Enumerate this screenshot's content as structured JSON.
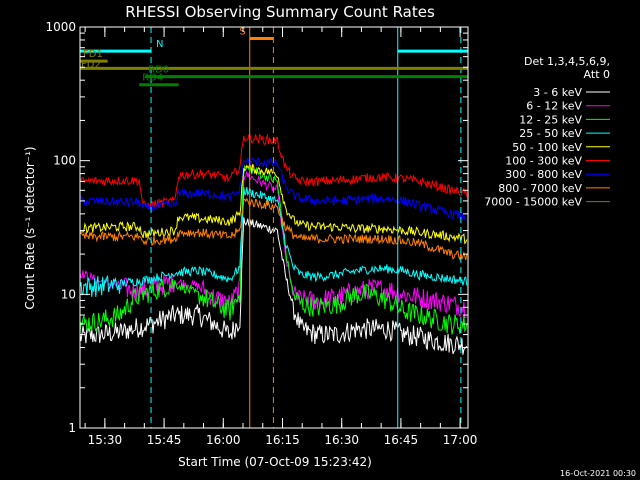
{
  "chart_data": {
    "type": "line",
    "title": "RHESSI Observing Summary Count Rates",
    "xlabel": "Start Time (07-Oct-09 15:23:42)",
    "ylabel": "Count Rate (s⁻¹ detector⁻¹)",
    "y_scale": "log",
    "ylim": [
      1,
      1000
    ],
    "x_unit": "minutes after 15:23:42",
    "xlim": [
      0,
      98.3
    ],
    "x_ticks": [
      {
        "label": "15:30",
        "value": 6.3
      },
      {
        "label": "15:45",
        "value": 21.3
      },
      {
        "label": "16:00",
        "value": 36.3
      },
      {
        "label": "16:15",
        "value": 51.3
      },
      {
        "label": "16:30",
        "value": 66.3
      },
      {
        "label": "16:45",
        "value": 81.3
      },
      {
        "label": "17:00",
        "value": 96.3
      }
    ],
    "y_ticks": [
      {
        "label": "1",
        "value": 1
      },
      {
        "label": "10",
        "value": 10
      },
      {
        "label": "100",
        "value": 100
      },
      {
        "label": "1000",
        "value": 1000
      }
    ],
    "legend_header": [
      "Det 1,3,4,5,6,9,",
      "Att 0"
    ],
    "legend_position": "right",
    "series": [
      {
        "name": "3 - 6 keV",
        "color": "#ffffff",
        "x": [
          0,
          10,
          18,
          24,
          30,
          34,
          38,
          40.5,
          41.5,
          50,
          52,
          54,
          56,
          60,
          65,
          70,
          74,
          78,
          82,
          86,
          90,
          94,
          98
        ],
        "y": [
          4.8,
          5.2,
          6.0,
          7.0,
          7.0,
          6.0,
          5.0,
          6.5,
          35,
          30,
          14,
          8,
          5.5,
          5.0,
          5.0,
          5.5,
          5.5,
          5.5,
          5.0,
          4.8,
          4.5,
          4.3,
          4.2
        ]
      },
      {
        "name": "6 - 12 keV",
        "color": "#ff00ff",
        "x": [
          0,
          5,
          10,
          14,
          18,
          24,
          30,
          34,
          38,
          40.5,
          41.5,
          50,
          52,
          54,
          56,
          60,
          65,
          70,
          74,
          78,
          82,
          86,
          90,
          94,
          98
        ],
        "y": [
          14.5,
          12.5,
          11.5,
          10.5,
          11.0,
          12.5,
          11.5,
          9.5,
          8.5,
          11,
          80,
          60,
          20,
          10,
          9.0,
          9.0,
          9.5,
          10.5,
          11,
          11,
          10,
          9.5,
          9.0,
          8.5,
          8.0
        ]
      },
      {
        "name": "12 - 25 keV",
        "color": "#00ff00",
        "x": [
          0,
          5,
          10,
          14,
          18,
          24,
          30,
          34,
          38,
          40.5,
          41.5,
          50,
          52,
          54,
          56,
          60,
          65,
          70,
          74,
          78,
          82,
          86,
          90,
          94,
          98
        ],
        "y": [
          6.0,
          6.3,
          7.0,
          9.5,
          10.5,
          12.0,
          10.0,
          8.5,
          7.5,
          10,
          90,
          70,
          22,
          10,
          8.5,
          8.0,
          8.5,
          10,
          10,
          9.0,
          7.5,
          7.0,
          6.5,
          6.0,
          6.0
        ]
      },
      {
        "name": "25 - 50 keV",
        "color": "#00ffff",
        "x": [
          0,
          5,
          10,
          14,
          18,
          24,
          30,
          34,
          38,
          40.5,
          41.5,
          50,
          52,
          54,
          56,
          60,
          65,
          70,
          74,
          78,
          82,
          86,
          90,
          94,
          98
        ],
        "y": [
          11.5,
          11.5,
          12.0,
          12.5,
          13.0,
          14.5,
          15.0,
          14.0,
          13.0,
          16,
          60,
          50,
          25,
          16,
          14,
          13.5,
          14,
          15,
          15.5,
          15.5,
          15,
          14,
          13.5,
          13,
          12.5
        ]
      },
      {
        "name": "50 - 100 keV",
        "color": "#ffff00",
        "x": [
          0,
          10,
          15,
          16,
          24,
          25,
          30,
          34,
          38,
          40.5,
          41.5,
          50,
          52,
          54,
          56,
          60,
          65,
          70,
          74,
          78,
          82,
          86,
          90,
          94,
          98
        ],
        "y": [
          31,
          32,
          32,
          28,
          30,
          38,
          37,
          36,
          35,
          40,
          90,
          80,
          45,
          36,
          33,
          32,
          32,
          31,
          31,
          31,
          30,
          29,
          28,
          27,
          26
        ]
      },
      {
        "name": "100 - 300 keV",
        "color": "#ff0000",
        "x": [
          0,
          10,
          15,
          16,
          24,
          25,
          30,
          34,
          38,
          40.5,
          41.5,
          50,
          52,
          54,
          56,
          60,
          65,
          70,
          74,
          78,
          82,
          86,
          90,
          94,
          98
        ],
        "y": [
          70,
          71,
          71,
          46,
          50,
          78,
          80,
          78,
          73,
          90,
          150,
          140,
          90,
          75,
          70,
          70,
          71,
          73,
          75,
          75,
          73,
          70,
          65,
          60,
          57
        ]
      },
      {
        "name": "300 - 800 keV",
        "color": "#0000ff",
        "x": [
          0,
          10,
          15,
          16,
          24,
          25,
          30,
          34,
          38,
          40.5,
          41.5,
          50,
          52,
          54,
          56,
          60,
          65,
          70,
          74,
          78,
          82,
          86,
          90,
          94,
          98
        ],
        "y": [
          50,
          49,
          49,
          44,
          47,
          56,
          57,
          56,
          53,
          60,
          100,
          95,
          65,
          55,
          52,
          50,
          50,
          51,
          52,
          52,
          50,
          46,
          43,
          40,
          38
        ]
      },
      {
        "name": "800 - 7000 keV",
        "color": "#ff8000",
        "x": [
          0,
          10,
          15,
          16,
          24,
          25,
          30,
          34,
          38,
          40.5,
          41.5,
          50,
          52,
          54,
          56,
          60,
          65,
          70,
          74,
          78,
          82,
          86,
          90,
          94,
          98
        ],
        "y": [
          27,
          27,
          27,
          25,
          26,
          29,
          29,
          28,
          27,
          30,
          50,
          45,
          32,
          28,
          26,
          26,
          26,
          26,
          26,
          26,
          25,
          24,
          22,
          20,
          19
        ]
      },
      {
        "name": "7000 - 15000 keV",
        "color": "#808000",
        "x": [],
        "y": []
      }
    ],
    "annotations": [
      {
        "label": "N",
        "color": "#00ffff",
        "x_start": 0,
        "x_end": 18,
        "y": 660
      },
      {
        "label": "N",
        "color": "#00ffff",
        "x_start": 80.5,
        "x_end": 98.3,
        "y": 660
      },
      {
        "label": "FD1",
        "color": "#808000",
        "x_start": 0,
        "x_end": 7,
        "y": 555
      },
      {
        "label": "FD2",
        "color": "#808000",
        "x_start": 0,
        "x_end": 98.3,
        "y": 490
      },
      {
        "label": "RD0",
        "color": "#008000",
        "x_start": 16.5,
        "x_end": 98.3,
        "y": 425
      },
      {
        "label": "RD4",
        "color": "#008000",
        "x_start": 15,
        "x_end": 25,
        "y": 370
      },
      {
        "label": "S",
        "color": "#ff8000",
        "x_start": 43,
        "x_end": 49,
        "y": 820
      }
    ],
    "night_boundaries": {
      "color": "#00ffff",
      "x": [
        18,
        96.5
      ]
    },
    "saa_boundaries": {
      "color": "#ff8000",
      "x": [
        43,
        49
      ]
    },
    "edge_lines": {
      "color": "#00ffff",
      "x": [
        0,
        80.5
      ]
    },
    "gap_lines": {
      "color": "#ff8000",
      "x": [
        42.3,
        51.3
      ]
    }
  },
  "footer": {
    "timestamp": "16-Oct-2021 00:30"
  }
}
